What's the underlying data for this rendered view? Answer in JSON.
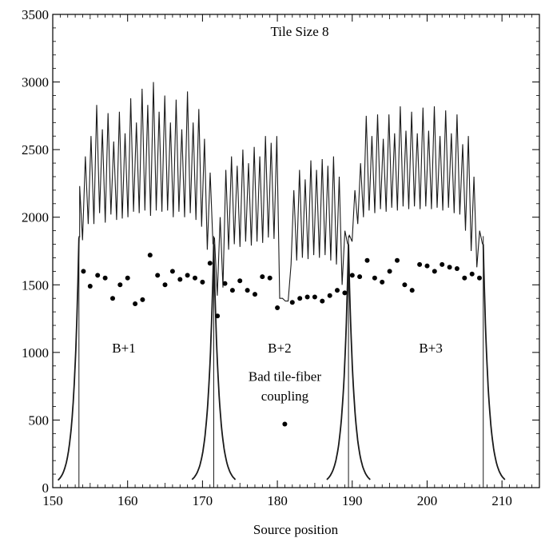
{
  "chart_data": {
    "type": "line",
    "title": "Tile Size 8",
    "xlabel": "Source position",
    "ylabel": "",
    "xlim": [
      150,
      215
    ],
    "ylim": [
      0,
      3500
    ],
    "xticks": [
      150,
      160,
      170,
      180,
      190,
      200,
      210
    ],
    "yticks": [
      0,
      500,
      1000,
      1500,
      2000,
      2500,
      3000,
      3500
    ],
    "grid": false,
    "legend": "none",
    "colors": {
      "line": "#1a1a1a",
      "points": "#000000",
      "axes": "#000000"
    },
    "annotations": [
      {
        "text": "B+1",
        "x": 159.5,
        "y": 1000
      },
      {
        "text": "B+2",
        "x": 180.3,
        "y": 1000
      },
      {
        "text": "B+3",
        "x": 200.5,
        "y": 1000
      },
      {
        "text": "Bad tile-fiber",
        "x": 181.0,
        "y": 790
      },
      {
        "text": "coupling",
        "x": 181.0,
        "y": 645
      }
    ],
    "boundaries": [
      153.5,
      171.5,
      189.5,
      207.5
    ],
    "modules": [
      {
        "name": "B+1",
        "start": 153.6,
        "end": 171.4,
        "peaks": [
          2230,
          2450,
          2600,
          2830,
          2650,
          2770,
          2560,
          2780,
          2620,
          2880,
          2700,
          2950,
          2830,
          3000,
          2780,
          2900,
          2700,
          2870,
          2650,
          2930,
          2700,
          2800,
          2580,
          2330
        ],
        "valleys": [
          1830,
          1950,
          1950,
          2030,
          1960,
          2020,
          1980,
          1990,
          2000,
          2040,
          2030,
          2050,
          2010,
          2050,
          2040,
          2050,
          2000,
          2040,
          2000,
          2030,
          1980,
          1930,
          1760
        ]
      },
      {
        "name": "B+2",
        "start": 171.6,
        "end": 189.4,
        "peaks": [
          1850,
          2000,
          2350,
          2450,
          2380,
          2500,
          2400,
          2520,
          2450,
          2600,
          2550,
          2600,
          1400,
          1380,
          2200,
          2350,
          2280,
          2420,
          2350,
          2430,
          2380,
          2450,
          2300,
          1900
        ],
        "valleys": [
          1420,
          1480,
          1760,
          1800,
          1780,
          1820,
          1790,
          1820,
          1810,
          1850,
          1840,
          1400,
          1380,
          1650,
          1680,
          1700,
          1690,
          1720,
          1700,
          1720,
          1680,
          1650,
          1500
        ]
      },
      {
        "name": "B+3",
        "start": 189.6,
        "end": 207.4,
        "peaks": [
          1870,
          2200,
          2400,
          2750,
          2600,
          2760,
          2580,
          2760,
          2620,
          2820,
          2640,
          2780,
          2620,
          2810,
          2640,
          2820,
          2600,
          2790,
          2620,
          2760,
          2540,
          2600,
          2300,
          1900
        ],
        "valleys": [
          1820,
          1950,
          2000,
          2050,
          2030,
          2060,
          2040,
          2070,
          2050,
          2080,
          2060,
          2080,
          2060,
          2080,
          2060,
          2070,
          2050,
          2070,
          2030,
          2020,
          1900,
          1750,
          1630
        ]
      }
    ],
    "edge_tails": [
      {
        "from": 150.7,
        "to": 153.5,
        "direction": "rise",
        "y_start": 55,
        "y_end": 1850
      },
      {
        "from": 171.5,
        "to": 174.4,
        "direction": "fall",
        "y_start": 1800,
        "y_end": 60
      },
      {
        "from": 168.6,
        "to": 171.5,
        "direction": "rise",
        "y_start": 60,
        "y_end": 1800
      },
      {
        "from": 189.5,
        "to": 192.4,
        "direction": "fall",
        "y_start": 1800,
        "y_end": 60
      },
      {
        "from": 186.6,
        "to": 189.5,
        "direction": "rise",
        "y_start": 60,
        "y_end": 1800
      },
      {
        "from": 207.5,
        "to": 210.4,
        "direction": "fall",
        "y_start": 1800,
        "y_end": 60
      }
    ],
    "series": [
      {
        "type": "scatter",
        "points": [
          [
            154.1,
            1600
          ],
          [
            155.0,
            1490
          ],
          [
            156.0,
            1570
          ],
          [
            157.0,
            1550
          ],
          [
            158.0,
            1400
          ],
          [
            159.0,
            1500
          ],
          [
            160.0,
            1550
          ],
          [
            161.0,
            1360
          ],
          [
            162.0,
            1390
          ],
          [
            163.0,
            1720
          ],
          [
            164.0,
            1570
          ],
          [
            165.0,
            1500
          ],
          [
            166.0,
            1600
          ],
          [
            167.0,
            1540
          ],
          [
            168.0,
            1570
          ],
          [
            169.0,
            1550
          ],
          [
            170.0,
            1520
          ],
          [
            171.0,
            1660
          ],
          [
            172.0,
            1270
          ],
          [
            173.0,
            1510
          ],
          [
            174.0,
            1460
          ],
          [
            175.0,
            1530
          ],
          [
            176.0,
            1460
          ],
          [
            177.0,
            1430
          ],
          [
            178.0,
            1560
          ],
          [
            179.0,
            1550
          ],
          [
            180.0,
            1330
          ],
          [
            181.0,
            470
          ],
          [
            182.0,
            1370
          ],
          [
            183.0,
            1400
          ],
          [
            184.0,
            1410
          ],
          [
            185.0,
            1410
          ],
          [
            186.0,
            1380
          ],
          [
            187.0,
            1420
          ],
          [
            188.0,
            1460
          ],
          [
            189.0,
            1440
          ],
          [
            190.0,
            1570
          ],
          [
            191.0,
            1560
          ],
          [
            192.0,
            1680
          ],
          [
            193.0,
            1550
          ],
          [
            194.0,
            1520
          ],
          [
            195.0,
            1600
          ],
          [
            196.0,
            1680
          ],
          [
            197.0,
            1500
          ],
          [
            198.0,
            1460
          ],
          [
            199.0,
            1650
          ],
          [
            200.0,
            1640
          ],
          [
            201.0,
            1600
          ],
          [
            202.0,
            1650
          ],
          [
            203.0,
            1630
          ],
          [
            204.0,
            1620
          ],
          [
            205.0,
            1550
          ],
          [
            206.0,
            1580
          ],
          [
            207.0,
            1550
          ]
        ]
      }
    ]
  }
}
